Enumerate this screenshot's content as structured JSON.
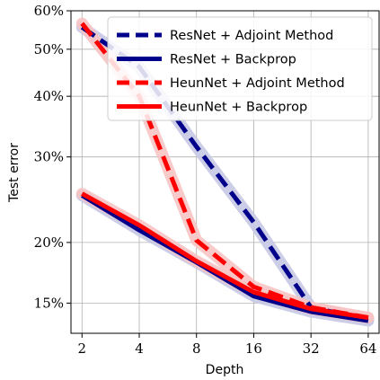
{
  "chart_data": {
    "type": "line",
    "xlabel": "Depth",
    "ylabel": "Test error",
    "x_scale": "log2",
    "y_scale": "log",
    "x": [
      2,
      4,
      8,
      16,
      32,
      64
    ],
    "x_tick_labels": [
      "2",
      "4",
      "8",
      "16",
      "32",
      "64"
    ],
    "y_ticks": [
      15,
      20,
      30,
      40,
      50,
      60
    ],
    "y_tick_labels": [
      "15%",
      "20%",
      "30%",
      "40%",
      "50%",
      "60%"
    ],
    "ylim": [
      13,
      60
    ],
    "grid": true,
    "legend_position": "top-right",
    "series": [
      {
        "name": "ResNet + Adjoint Method",
        "color": "#00008b",
        "band_color": "#c6c8e3",
        "dash": true,
        "values": [
          55.5,
          46,
          31.5,
          22,
          14.7,
          13.9
        ]
      },
      {
        "name": "ResNet + Backprop",
        "color": "#00008b",
        "band_color": "#c6c8e3",
        "dash": false,
        "values": [
          25,
          21.2,
          18.2,
          15.5,
          14.4,
          13.8
        ]
      },
      {
        "name": "HeunNet + Adjoint Method",
        "color": "#ff0000",
        "band_color": "#f7c4c4",
        "dash": true,
        "values": [
          56.5,
          40,
          20.2,
          16.2,
          14.7,
          14
        ]
      },
      {
        "name": "HeunNet + Backprop",
        "color": "#ff0000",
        "band_color": "#f7c4c4",
        "dash": false,
        "values": [
          25.2,
          21.7,
          18.3,
          15.8,
          14.6,
          14
        ]
      }
    ]
  }
}
